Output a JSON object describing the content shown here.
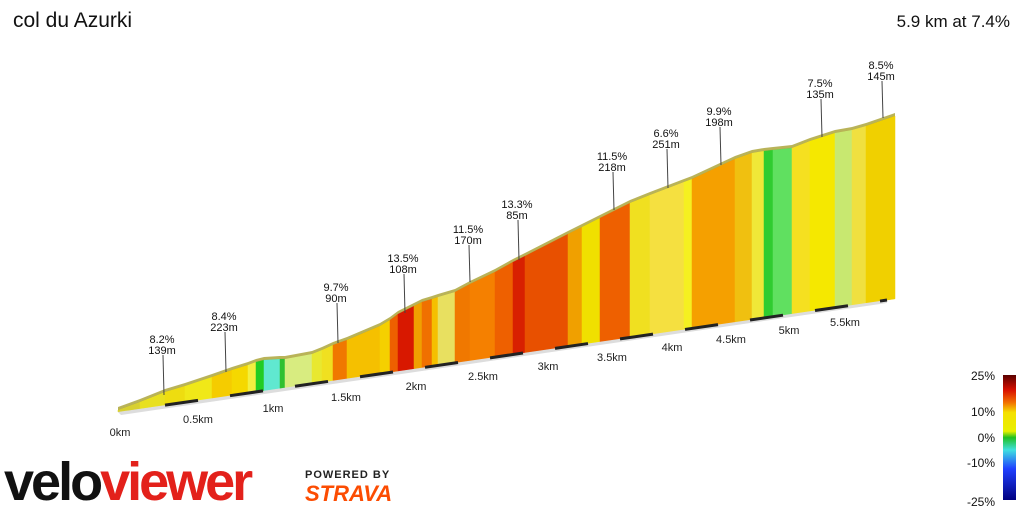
{
  "header": {
    "title": "col du Azurki",
    "subtitle": "5.9 km at 7.4%"
  },
  "profile": {
    "annotations": [
      {
        "grade": "8.2%",
        "length": "139m"
      },
      {
        "grade": "8.4%",
        "length": "223m"
      },
      {
        "grade": "9.7%",
        "length": "90m"
      },
      {
        "grade": "13.5%",
        "length": "108m"
      },
      {
        "grade": "11.5%",
        "length": "170m"
      },
      {
        "grade": "13.3%",
        "length": "85m"
      },
      {
        "grade": "11.5%",
        "length": "218m"
      },
      {
        "grade": "6.6%",
        "length": "251m"
      },
      {
        "grade": "9.9%",
        "length": "198m"
      },
      {
        "grade": "7.5%",
        "length": "135m"
      },
      {
        "grade": "8.5%",
        "length": "145m"
      }
    ],
    "distance_labels": [
      "0km",
      "0.5km",
      "1km",
      "1.5km",
      "2km",
      "2.5km",
      "3km",
      "3.5km",
      "4km",
      "4.5km",
      "5km",
      "5.5km"
    ]
  },
  "legend": {
    "labels": [
      "25%",
      "10%",
      "0%",
      "-10%",
      "-25%"
    ]
  },
  "branding": {
    "logo_left": "velo",
    "logo_right": "viewer",
    "powered": "POWERED BY",
    "strava": "STRAVA"
  }
}
